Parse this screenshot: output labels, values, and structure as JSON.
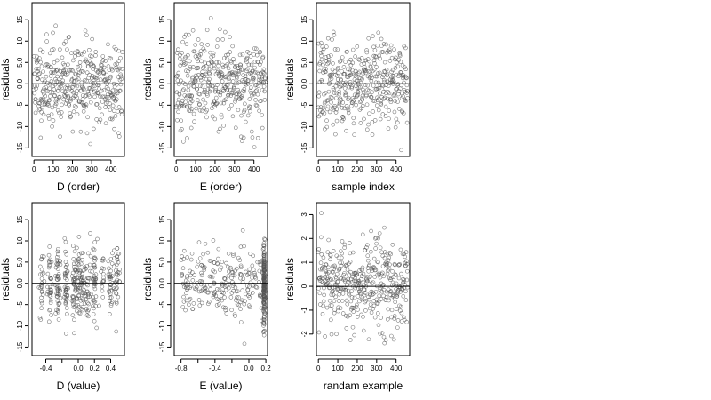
{
  "chart_data": [
    {
      "id": "p1",
      "type": "scatter",
      "xlabel": "D (order)",
      "ylabel": "residuals",
      "xlim": [
        -10,
        470
      ],
      "ylim": [
        -17,
        19
      ],
      "xticks": [
        {
          "v": 0,
          "t": "0"
        },
        {
          "v": 100,
          "t": "100"
        },
        {
          "v": 200,
          "t": "200"
        },
        {
          "v": 300,
          "t": "300"
        },
        {
          "v": 400,
          "t": "400"
        }
      ],
      "yticks": [
        {
          "v": -15,
          "t": "-15"
        },
        {
          "v": -10,
          "t": "-10"
        },
        {
          "v": -5,
          "t": "-5"
        },
        {
          "v": 0,
          "t": "0.0"
        },
        {
          "v": 5,
          "t": "5.0"
        },
        {
          "v": 10,
          "t": "10"
        },
        {
          "v": 15,
          "t": "15"
        }
      ],
      "refline": 0,
      "gen": {
        "n": 420,
        "seed": 11,
        "xkind": "index",
        "xmax": 460,
        "sd": 5,
        "spread": 0
      }
    },
    {
      "id": "p2",
      "type": "scatter",
      "xlabel": "E (order)",
      "ylabel": "residuals",
      "xlim": [
        -10,
        470
      ],
      "ylim": [
        -17,
        19
      ],
      "xticks": [
        {
          "v": 0,
          "t": "0"
        },
        {
          "v": 100,
          "t": "100"
        },
        {
          "v": 200,
          "t": "200"
        },
        {
          "v": 300,
          "t": "300"
        },
        {
          "v": 400,
          "t": "400"
        }
      ],
      "yticks": [
        {
          "v": -15,
          "t": "-15"
        },
        {
          "v": -10,
          "t": "-10"
        },
        {
          "v": -5,
          "t": "-5"
        },
        {
          "v": 0,
          "t": "0.0"
        },
        {
          "v": 5,
          "t": "5.0"
        },
        {
          "v": 10,
          "t": "10"
        },
        {
          "v": 15,
          "t": "15"
        }
      ],
      "refline": 0,
      "gen": {
        "n": 420,
        "seed": 23,
        "xkind": "index",
        "xmax": 460,
        "sd": 5,
        "spread": 0
      }
    },
    {
      "id": "p3",
      "type": "scatter",
      "xlabel": "sample index",
      "ylabel": "residuals",
      "xlim": [
        -10,
        470
      ],
      "ylim": [
        -17,
        19
      ],
      "xticks": [
        {
          "v": 0,
          "t": "0"
        },
        {
          "v": 100,
          "t": "100"
        },
        {
          "v": 200,
          "t": "200"
        },
        {
          "v": 300,
          "t": "300"
        },
        {
          "v": 400,
          "t": "400"
        }
      ],
      "yticks": [
        {
          "v": -15,
          "t": "-15"
        },
        {
          "v": -10,
          "t": "-10"
        },
        {
          "v": -5,
          "t": "-5"
        },
        {
          "v": 0,
          "t": "0.0"
        },
        {
          "v": 5,
          "t": "5.0"
        },
        {
          "v": 10,
          "t": "10"
        },
        {
          "v": 15,
          "t": "15"
        }
      ],
      "refline": 0,
      "gen": {
        "n": 420,
        "seed": 37,
        "xkind": "index",
        "xmax": 460,
        "sd": 5,
        "spread": 0
      }
    },
    {
      "id": "p4",
      "type": "scatter",
      "xlabel": "D (value)",
      "ylabel": "residuals",
      "xlim": [
        -0.57,
        0.57
      ],
      "ylim": [
        -17,
        19
      ],
      "xticks": [
        {
          "v": -0.4,
          "t": "-0.4"
        },
        {
          "v": -0.2,
          "t": ""
        },
        {
          "v": 0.0,
          "t": "0.0"
        },
        {
          "v": 0.2,
          "t": "0.2"
        },
        {
          "v": 0.4,
          "t": "0.4"
        }
      ],
      "yticks": [
        {
          "v": -15,
          "t": "-15"
        },
        {
          "v": -10,
          "t": "-10"
        },
        {
          "v": -5,
          "t": "-5"
        },
        {
          "v": 0,
          "t": "0.0"
        },
        {
          "v": 5,
          "t": "5.0"
        },
        {
          "v": 10,
          "t": "10"
        },
        {
          "v": 15,
          "t": "15"
        }
      ],
      "refline": 0,
      "gen": {
        "n": 420,
        "seed": 53,
        "xkind": "clustered",
        "xmin": -0.5,
        "xmax": 0.5,
        "sd": 4.5,
        "spread": 0
      }
    },
    {
      "id": "p5",
      "type": "scatter",
      "xlabel": "E (value)",
      "ylabel": "residuals",
      "xlim": [
        -0.88,
        0.22
      ],
      "ylim": [
        -17,
        19
      ],
      "xticks": [
        {
          "v": -0.8,
          "t": "-0.8"
        },
        {
          "v": -0.6,
          "t": ""
        },
        {
          "v": -0.4,
          "t": "-0.4"
        },
        {
          "v": -0.2,
          "t": ""
        },
        {
          "v": 0.0,
          "t": "0.0"
        },
        {
          "v": 0.2,
          "t": "0.2"
        }
      ],
      "yticks": [
        {
          "v": -15,
          "t": "-15"
        },
        {
          "v": -10,
          "t": "-10"
        },
        {
          "v": -5,
          "t": "-5"
        },
        {
          "v": 0,
          "t": "0.0"
        },
        {
          "v": 5,
          "t": "5.0"
        },
        {
          "v": 10,
          "t": "10"
        },
        {
          "v": 15,
          "t": "15"
        }
      ],
      "refline": 0,
      "gen": {
        "n": 420,
        "seed": 71,
        "xkind": "massed",
        "xmin": -0.8,
        "xmax": 0.18,
        "mass": 0.18,
        "sd": 4.5,
        "spread": 0
      }
    },
    {
      "id": "p6",
      "type": "scatter",
      "xlabel": "randam example",
      "ylabel": "residuals",
      "xlim": [
        -10,
        470
      ],
      "ylim": [
        -2.9,
        3.5
      ],
      "xticks": [
        {
          "v": 0,
          "t": "0"
        },
        {
          "v": 100,
          "t": "100"
        },
        {
          "v": 200,
          "t": "200"
        },
        {
          "v": 300,
          "t": "300"
        },
        {
          "v": 400,
          "t": "400"
        }
      ],
      "yticks": [
        {
          "v": -2,
          "t": "-2"
        },
        {
          "v": -1,
          "t": "-1"
        },
        {
          "v": 0,
          "t": "0"
        },
        {
          "v": 1,
          "t": "1"
        },
        {
          "v": 2,
          "t": "2"
        },
        {
          "v": 3,
          "t": "3"
        }
      ],
      "refline": 0,
      "gen": {
        "n": 420,
        "seed": 97,
        "xkind": "index",
        "xmax": 460,
        "sd": 1.0,
        "spread": 0
      }
    }
  ]
}
